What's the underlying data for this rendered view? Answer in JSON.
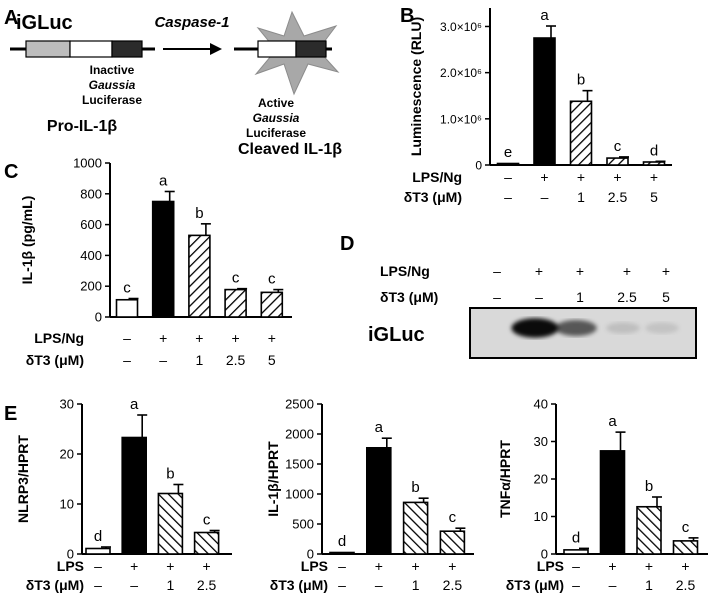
{
  "panel_a": {
    "letter": "A",
    "title": "iGLuc",
    "enzyme": "Caspase-1",
    "inactive_line1": "Inactive",
    "inactive_line2": "Gaussia",
    "inactive_line3": "Luciferase",
    "active_line1": "Active",
    "active_line2": "Gaussia",
    "active_line3": "Luciferase",
    "pro_label": "Pro-IL-1β",
    "cleaved_label": "Cleaved IL-1β"
  },
  "panel_b": {
    "letter": "B"
  },
  "panel_c": {
    "letter": "C"
  },
  "panel_d": {
    "letter": "D",
    "row1_label": "LPS/Ng",
    "row1_values": [
      "–",
      "+",
      "+",
      "+",
      "+"
    ],
    "row2_label": "δT3 (μM)",
    "row2_values": [
      "–",
      "–",
      "1",
      "2.5",
      "5"
    ],
    "band_label": "iGLuc",
    "band_intensity": [
      0,
      0.95,
      0.6,
      0.12,
      0.1
    ]
  },
  "panel_e": {
    "letter": "E"
  },
  "colors": {
    "black_bar": "#000000",
    "white_bar": "#ffffff",
    "gel": "#d6d6d6"
  },
  "chart_data": [
    {
      "id": "B",
      "type": "bar",
      "ylabel": "Luminescence (RLU)",
      "ylim": [
        0,
        3400000
      ],
      "yticks": [
        {
          "v": 0,
          "t": "0"
        },
        {
          "v": 1000000,
          "t": "1.0×10⁶"
        },
        {
          "v": 2000000,
          "t": "2.0×10⁶"
        },
        {
          "v": 3000000,
          "t": "3.0×10⁶"
        }
      ],
      "values": [
        8000,
        2750000,
        1380000,
        150000,
        65000
      ],
      "errors": [
        4000,
        260000,
        230000,
        25000,
        15000
      ],
      "letters": [
        "e",
        "a",
        "b",
        "c",
        "d"
      ],
      "fills": [
        "white",
        "black",
        "hatch",
        "hatch",
        "hatch"
      ],
      "row1_label": "LPS/Ng",
      "row1_values": [
        "–",
        "+",
        "+",
        "+",
        "+"
      ],
      "row2_label": "δT3 (μM)",
      "row2_values": [
        "–",
        "–",
        "1",
        "2.5",
        "5"
      ]
    },
    {
      "id": "C",
      "type": "bar",
      "ylabel": "IL-1β (pg/mL)",
      "ylim": [
        0,
        1000
      ],
      "yticks": [
        {
          "v": 0,
          "t": "0"
        },
        {
          "v": 200,
          "t": "200"
        },
        {
          "v": 400,
          "t": "400"
        },
        {
          "v": 600,
          "t": "600"
        },
        {
          "v": 800,
          "t": "800"
        },
        {
          "v": 1000,
          "t": "1000"
        }
      ],
      "values": [
        112,
        750,
        530,
        178,
        160
      ],
      "errors": [
        8,
        65,
        75,
        6,
        18
      ],
      "letters": [
        "c",
        "a",
        "b",
        "c",
        "c"
      ],
      "fills": [
        "white",
        "black",
        "hatch",
        "hatch",
        "hatch"
      ],
      "row1_label": "LPS/Ng",
      "row1_values": [
        "–",
        "+",
        "+",
        "+",
        "+"
      ],
      "row2_label": "δT3 (μM)",
      "row2_values": [
        "–",
        "–",
        "1",
        "2.5",
        "5"
      ]
    },
    {
      "id": "E1",
      "type": "bar",
      "ylabel": "NLRP3/HPRT",
      "ylim": [
        0,
        30
      ],
      "yticks": [
        {
          "v": 0,
          "t": "0"
        },
        {
          "v": 10,
          "t": "10"
        },
        {
          "v": 20,
          "t": "20"
        },
        {
          "v": 30,
          "t": "30"
        }
      ],
      "values": [
        1.1,
        23.3,
        12.1,
        4.3
      ],
      "errors": [
        0.3,
        4.5,
        1.8,
        0.4
      ],
      "letters": [
        "d",
        "a",
        "b",
        "c"
      ],
      "fills": [
        "white",
        "black",
        "hatch",
        "hatch"
      ],
      "row1_label": "LPS",
      "row1_values": [
        "–",
        "+",
        "+",
        "+"
      ],
      "row2_label": "δT3 (μM)",
      "row2_values": [
        "–",
        "–",
        "1",
        "2.5"
      ]
    },
    {
      "id": "E2",
      "type": "bar",
      "ylabel": "IL-1β/HPRT",
      "ylim": [
        0,
        2500
      ],
      "yticks": [
        {
          "v": 0,
          "t": "0"
        },
        {
          "v": 500,
          "t": "500"
        },
        {
          "v": 1000,
          "t": "1000"
        },
        {
          "v": 1500,
          "t": "1500"
        },
        {
          "v": 2000,
          "t": "2000"
        },
        {
          "v": 2500,
          "t": "2500"
        }
      ],
      "values": [
        0,
        1770,
        860,
        380
      ],
      "errors": [
        0,
        160,
        70,
        50
      ],
      "letters": [
        "d",
        "a",
        "b",
        "c"
      ],
      "fills": [
        "white",
        "black",
        "hatch",
        "hatch"
      ],
      "row1_label": "LPS",
      "row1_values": [
        "–",
        "+",
        "+",
        "+"
      ],
      "row2_label": "δT3 (μM)",
      "row2_values": [
        "–",
        "–",
        "1",
        "2.5"
      ]
    },
    {
      "id": "E3",
      "type": "bar",
      "ylabel": "TNFα/HPRT",
      "ylim": [
        0,
        40
      ],
      "yticks": [
        {
          "v": 0,
          "t": "0"
        },
        {
          "v": 10,
          "t": "10"
        },
        {
          "v": 20,
          "t": "20"
        },
        {
          "v": 30,
          "t": "30"
        },
        {
          "v": 40,
          "t": "40"
        }
      ],
      "values": [
        1.1,
        27.5,
        12.6,
        3.5
      ],
      "errors": [
        0.4,
        5.0,
        2.6,
        0.8
      ],
      "letters": [
        "d",
        "a",
        "b",
        "c"
      ],
      "fills": [
        "white",
        "black",
        "hatch",
        "hatch"
      ],
      "row1_label": "LPS",
      "row1_values": [
        "–",
        "+",
        "+",
        "+"
      ],
      "row2_label": "δT3 (μM)",
      "row2_values": [
        "–",
        "–",
        "1",
        "2.5"
      ]
    }
  ]
}
